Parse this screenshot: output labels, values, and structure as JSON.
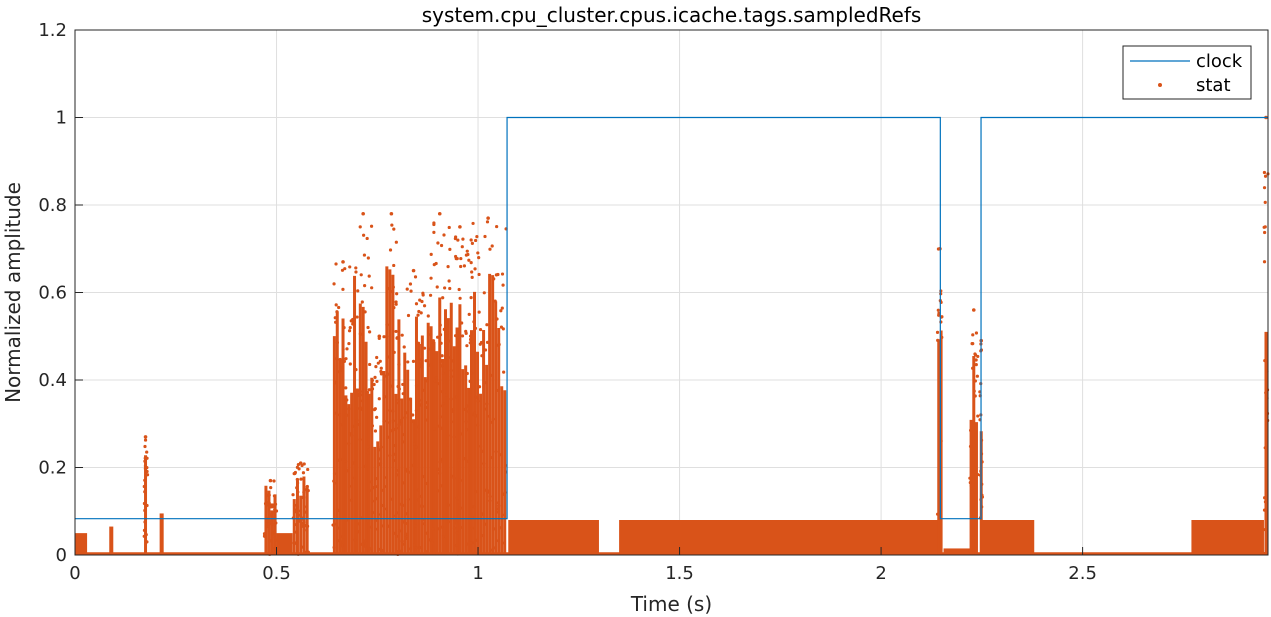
{
  "chart_data": {
    "type": "line",
    "title": "system.cpu_cluster.cpus.icache.tags.sampledRefs",
    "xlabel": "Time (s)",
    "ylabel": "Normalized amplitude",
    "xlim": [
      0,
      2.96
    ],
    "ylim": [
      0,
      1.2
    ],
    "xticks": [
      0,
      0.5,
      1,
      1.5,
      2,
      2.5
    ],
    "xtick_labels": [
      "0",
      "0.5",
      "1",
      "1.5",
      "2",
      "2.5"
    ],
    "yticks": [
      0,
      0.2,
      0.4,
      0.6,
      0.8,
      1,
      1.2
    ],
    "ytick_labels": [
      "0",
      "0.2",
      "0.4",
      "0.6",
      "0.8",
      "1",
      "1.2"
    ],
    "grid": true,
    "legend_position": "top-right",
    "colors": {
      "clock": "#0072BD",
      "stat": "#D95319"
    },
    "series": [
      {
        "name": "clock",
        "style": "step-line",
        "x": [
          0,
          1.072,
          1.072,
          2.147,
          2.147,
          2.248,
          2.248,
          2.96
        ],
        "y": [
          0.083,
          0.083,
          1,
          1,
          0.083,
          0.083,
          1,
          1
        ]
      },
      {
        "name": "stat",
        "style": "markers",
        "clusters": [
          {
            "x0": 0.0,
            "x1": 0.03,
            "ymax": 0.05
          },
          {
            "x0": 0.085,
            "x1": 0.095,
            "ymax": 0.065
          },
          {
            "x0": 0.17,
            "x1": 0.18,
            "ymax": 0.27
          },
          {
            "x0": 0.21,
            "x1": 0.22,
            "ymax": 0.095
          },
          {
            "x0": 0.47,
            "x1": 0.5,
            "ymax": 0.17
          },
          {
            "x0": 0.5,
            "x1": 0.54,
            "ymax": 0.05
          },
          {
            "x0": 0.54,
            "x1": 0.58,
            "ymax": 0.21
          },
          {
            "x0": 0.64,
            "x1": 0.69,
            "ymax": 0.67
          },
          {
            "x0": 0.69,
            "x1": 0.74,
            "ymax": 0.78
          },
          {
            "x0": 0.74,
            "x1": 0.77,
            "ymax": 0.5
          },
          {
            "x0": 0.77,
            "x1": 0.8,
            "ymax": 0.78
          },
          {
            "x0": 0.8,
            "x1": 0.88,
            "ymax": 0.65
          },
          {
            "x0": 0.88,
            "x1": 0.93,
            "ymax": 0.78
          },
          {
            "x0": 0.93,
            "x1": 0.98,
            "ymax": 0.75
          },
          {
            "x0": 0.98,
            "x1": 1.07,
            "ymax": 0.77
          },
          {
            "x0": 1.075,
            "x1": 1.3,
            "ymax": 0.08
          },
          {
            "x0": 1.35,
            "x1": 2.14,
            "ymax": 0.08
          },
          {
            "x0": 2.14,
            "x1": 2.152,
            "ymax": 0.7
          },
          {
            "x0": 2.155,
            "x1": 2.23,
            "ymax": 0.015
          },
          {
            "x0": 2.22,
            "x1": 2.24,
            "ymax": 0.56
          },
          {
            "x0": 2.245,
            "x1": 2.252,
            "ymax": 0.49
          },
          {
            "x0": 2.25,
            "x1": 2.38,
            "ymax": 0.08
          },
          {
            "x0": 2.77,
            "x1": 2.95,
            "ymax": 0.08
          },
          {
            "x0": 2.95,
            "x1": 2.96,
            "ymax": 1.0
          }
        ]
      }
    ]
  }
}
